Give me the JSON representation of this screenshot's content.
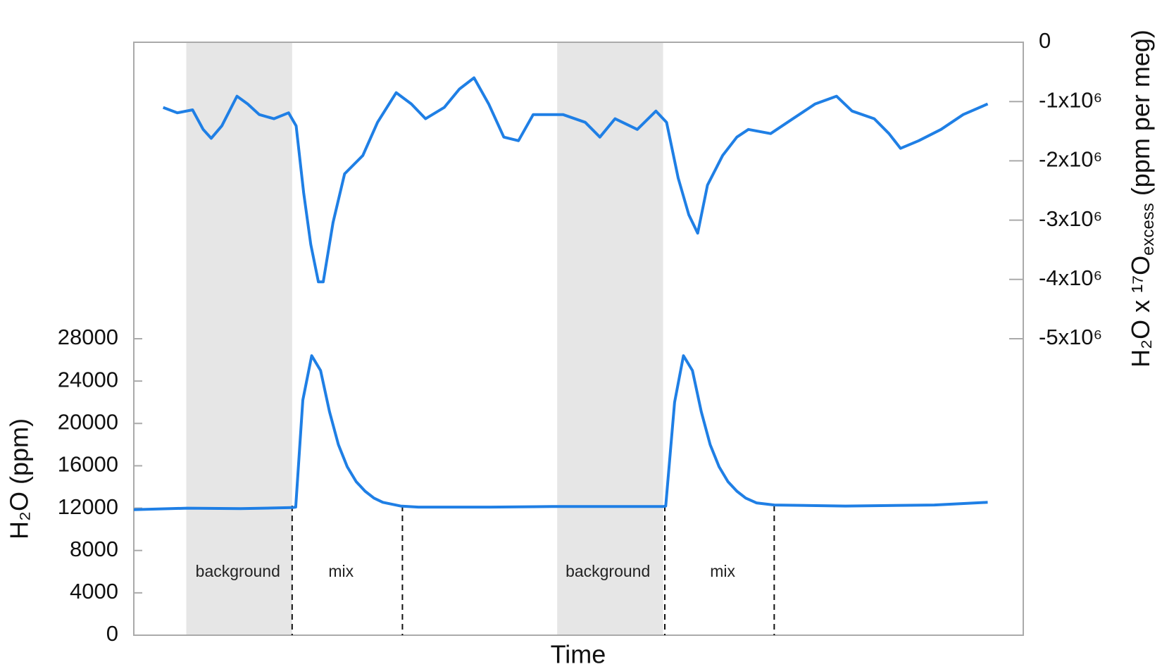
{
  "chart_data": {
    "type": "line",
    "xlabel": "Time",
    "ylabel": "H₂O (ppm)",
    "y2label": {
      "main": "H₂O x ¹⁷O",
      "sub": "excess",
      "tail": " (ppm per meg)"
    },
    "xlim": [
      0,
      100
    ],
    "ylim": [
      0,
      56000
    ],
    "yticks": [
      0,
      4000,
      8000,
      12000,
      16000,
      20000,
      24000,
      28000
    ],
    "y2lim": [
      -10000000,
      0
    ],
    "y2ticks": [
      {
        "value": -5000000,
        "label": "-5x10⁶"
      },
      {
        "value": -4000000,
        "label": "-4x10⁶"
      },
      {
        "value": -3000000,
        "label": "-3x10⁶"
      },
      {
        "value": -2000000,
        "label": "-2x10⁶"
      },
      {
        "value": -1000000,
        "label": "-1x10⁶"
      },
      0
    ],
    "regions": [
      {
        "from": 5.9,
        "to": 17.8,
        "color": "#e6e6e6"
      },
      {
        "from": 47.6,
        "to": 59.5,
        "color": "#e6e6e6"
      }
    ],
    "dividers": [
      17.8,
      30.2,
      59.7,
      72.0
    ],
    "annotations": [
      {
        "text": "background",
        "x": 11.7
      },
      {
        "text": "mix",
        "x": 23.3
      },
      {
        "text": "background",
        "x": 53.3
      },
      {
        "text": "mix",
        "x": 66.2
      }
    ],
    "series": [
      {
        "name": "H₂O",
        "color": "#1f7fe5",
        "axis": "y",
        "x": [
          0,
          6,
          12,
          17.8,
          18.2,
          19,
          20,
          21,
          22,
          23,
          24,
          25,
          26,
          27,
          28,
          30,
          32,
          40,
          47,
          59.5,
          59.8,
          60.8,
          61.8,
          62.8,
          63.8,
          64.8,
          65.8,
          66.8,
          67.8,
          68.8,
          70,
          72,
          80,
          90,
          96
        ],
        "values": [
          11850,
          12000,
          11950,
          12050,
          12100,
          22200,
          26400,
          25000,
          21100,
          18000,
          15900,
          14500,
          13600,
          12950,
          12550,
          12200,
          12100,
          12100,
          12150,
          12150,
          12200,
          22000,
          26400,
          25000,
          21100,
          18000,
          15900,
          14500,
          13600,
          12950,
          12500,
          12300,
          12200,
          12300,
          12550
        ]
      },
      {
        "name": "H₂O x ¹⁷O excess",
        "color": "#1f7fe5",
        "axis": "y2",
        "x": [
          3.3,
          4.9,
          6.6,
          7.8,
          8.7,
          9.9,
          11.6,
          12.8,
          14.1,
          15.75,
          17.4,
          18.25,
          19.1,
          19.9,
          20.75,
          21.3,
          22.4,
          23.7,
          25.75,
          27.4,
          29.5,
          31.2,
          32.8,
          34.9,
          36.6,
          38.25,
          39.9,
          41.6,
          43.25,
          44.9,
          48.25,
          50.75,
          52.4,
          54.1,
          56.6,
          58.7,
          59.9,
          61.2,
          62.4,
          63.4,
          64.5,
          66.2,
          67.8,
          69.1,
          71.6,
          74.1,
          76.6,
          79,
          80.75,
          83.25,
          84.9,
          86.2,
          88.25,
          90.75,
          93.25,
          96
        ],
        "values": [
          -1100000,
          -1190000,
          -1140000,
          -1470000,
          -1620000,
          -1410000,
          -910000,
          -1040000,
          -1220000,
          -1290000,
          -1190000,
          -1410000,
          -2540000,
          -3410000,
          -4040000,
          -4040000,
          -3040000,
          -2220000,
          -1910000,
          -1350000,
          -850000,
          -1040000,
          -1290000,
          -1100000,
          -790000,
          -600000,
          -1040000,
          -1600000,
          -1660000,
          -1220000,
          -1220000,
          -1350000,
          -1600000,
          -1290000,
          -1470000,
          -1160000,
          -1350000,
          -2290000,
          -2910000,
          -3220000,
          -2410000,
          -1910000,
          -1600000,
          -1470000,
          -1540000,
          -1290000,
          -1040000,
          -910000,
          -1160000,
          -1290000,
          -1540000,
          -1790000,
          -1660000,
          -1470000,
          -1220000,
          -1040000
        ]
      }
    ]
  }
}
